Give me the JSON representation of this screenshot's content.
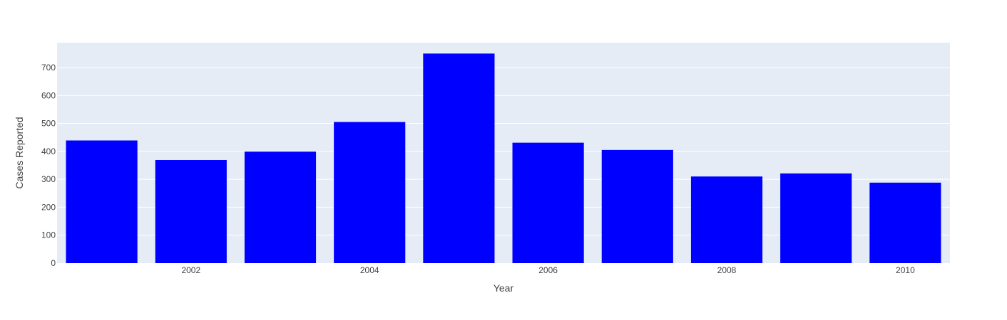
{
  "chart_data": {
    "type": "bar",
    "x": [
      2001,
      2002,
      2003,
      2004,
      2005,
      2006,
      2007,
      2008,
      2009,
      2010
    ],
    "values": [
      439,
      369,
      399,
      505,
      750,
      431,
      405,
      310,
      321,
      288
    ],
    "xlabel": "Year",
    "ylabel": "Cases Reported",
    "xlim": [
      2000.5,
      2010.5
    ],
    "ylim": [
      0,
      789
    ],
    "x_ticks": [
      2002,
      2004,
      2006,
      2008,
      2010
    ],
    "y_ticks": [
      0,
      100,
      200,
      300,
      400,
      500,
      600,
      700
    ],
    "grid": true,
    "legend": "none",
    "colors": {
      "bar": "#0000ff",
      "plot_background": "#e5ecf6",
      "gridline": "#ffffff",
      "text": "#444444"
    }
  }
}
